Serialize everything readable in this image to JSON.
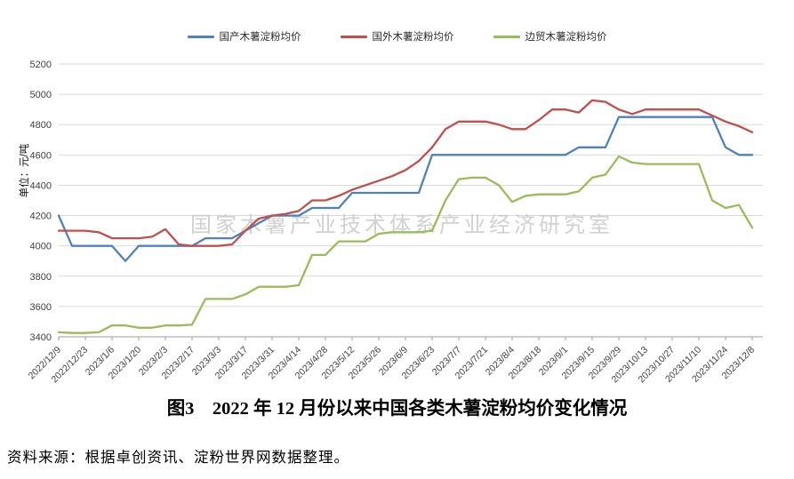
{
  "page": {
    "title_caption": "图3　2022 年 12 月份以来中国各类木薯淀粉均价变化情况",
    "source_note": "资料来源：根据卓创资讯、淀粉世界网数据整理。",
    "watermark": "国家木薯产业技术体系产业经济研究室"
  },
  "chart_data": {
    "type": "line",
    "title": "",
    "ylabel": "单位：元/吨",
    "xlabel": "",
    "ylim": [
      3400,
      5200
    ],
    "ytick_step": 200,
    "grid": true,
    "legend_position": "top",
    "colors": {
      "grid": "#d9d9d9",
      "axis": "#9e9e9e",
      "tick_text": "#404040",
      "watermark": "#c9c9c9"
    },
    "x": [
      "2022/12/9",
      "2022/12/16",
      "2022/12/23",
      "2022/12/30",
      "2023/1/6",
      "2023/1/13",
      "2023/1/20",
      "2023/1/27",
      "2023/2/3",
      "2023/2/10",
      "2023/2/17",
      "2023/2/24",
      "2023/3/3",
      "2023/3/10",
      "2023/3/17",
      "2023/3/24",
      "2023/3/31",
      "2023/4/7",
      "2023/4/14",
      "2023/4/21",
      "2023/4/28",
      "2023/5/5",
      "2023/5/12",
      "2023/5/19",
      "2023/5/26",
      "2023/6/2",
      "2023/6/9",
      "2023/6/16",
      "2023/6/23",
      "2023/6/30",
      "2023/7/7",
      "2023/7/14",
      "2023/7/21",
      "2023/7/28",
      "2023/8/4",
      "2023/8/11",
      "2023/8/18",
      "2023/8/25",
      "2023/9/1",
      "2023/9/8",
      "2023/9/15",
      "2023/9/22",
      "2023/9/29",
      "2023/10/6",
      "2023/10/13",
      "2023/10/20",
      "2023/10/27",
      "2023/11/3",
      "2023/11/10",
      "2023/11/17",
      "2023/11/24",
      "2023/12/1",
      "2023/12/8"
    ],
    "xtick_labels": [
      "2022/12/9",
      "2022/12/23",
      "2023/1/6",
      "2023/1/20",
      "2023/2/3",
      "2023/2/17",
      "2023/3/3",
      "2023/3/17",
      "2023/3/31",
      "2023/4/14",
      "2023/4/28",
      "2023/5/12",
      "2023/5/26",
      "2023/6/9",
      "2023/6/23",
      "2023/7/7",
      "2023/7/21",
      "2023/8/4",
      "2023/8/18",
      "2023/9/1",
      "2023/9/15",
      "2023/9/29",
      "2023/10/13",
      "2023/10/27",
      "2023/11/10",
      "2023/11/24",
      "2023/12/8"
    ],
    "series": [
      {
        "name": "国产木薯淀粉均价",
        "color": "#4F81BD",
        "values": [
          4200,
          4000,
          4000,
          4000,
          4000,
          3900,
          4000,
          4000,
          4000,
          4000,
          4000,
          4050,
          4050,
          4050,
          4100,
          4150,
          4200,
          4200,
          4200,
          4250,
          4250,
          4250,
          4350,
          4350,
          4350,
          4350,
          4350,
          4350,
          4600,
          4600,
          4600,
          4600,
          4600,
          4600,
          4600,
          4600,
          4600,
          4600,
          4600,
          4650,
          4650,
          4650,
          4850,
          4850,
          4850,
          4850,
          4850,
          4850,
          4850,
          4850,
          4650,
          4600,
          4600
        ]
      },
      {
        "name": "国外木薯淀粉均价",
        "color": "#C0504D",
        "values": [
          4100,
          4100,
          4100,
          4090,
          4050,
          4050,
          4050,
          4060,
          4110,
          4010,
          4000,
          4000,
          4000,
          4010,
          4100,
          4180,
          4200,
          4210,
          4230,
          4300,
          4300,
          4330,
          4370,
          4400,
          4430,
          4460,
          4500,
          4560,
          4650,
          4770,
          4820,
          4820,
          4820,
          4800,
          4770,
          4770,
          4830,
          4900,
          4900,
          4880,
          4960,
          4950,
          4900,
          4870,
          4900,
          4900,
          4900,
          4900,
          4900,
          4860,
          4820,
          4790,
          4750
        ]
      },
      {
        "name": "边贸木薯淀粉均价",
        "color": "#9BBB59",
        "values": [
          3430,
          3425,
          3425,
          3430,
          3475,
          3475,
          3460,
          3460,
          3475,
          3475,
          3480,
          3650,
          3650,
          3650,
          3680,
          3730,
          3730,
          3730,
          3740,
          3940,
          3940,
          4030,
          4030,
          4030,
          4080,
          4090,
          4090,
          4090,
          4100,
          4300,
          4440,
          4450,
          4450,
          4400,
          4290,
          4330,
          4340,
          4340,
          4340,
          4360,
          4450,
          4470,
          4590,
          4550,
          4540,
          4540,
          4540,
          4540,
          4540,
          4300,
          4250,
          4270,
          4120
        ]
      }
    ]
  }
}
